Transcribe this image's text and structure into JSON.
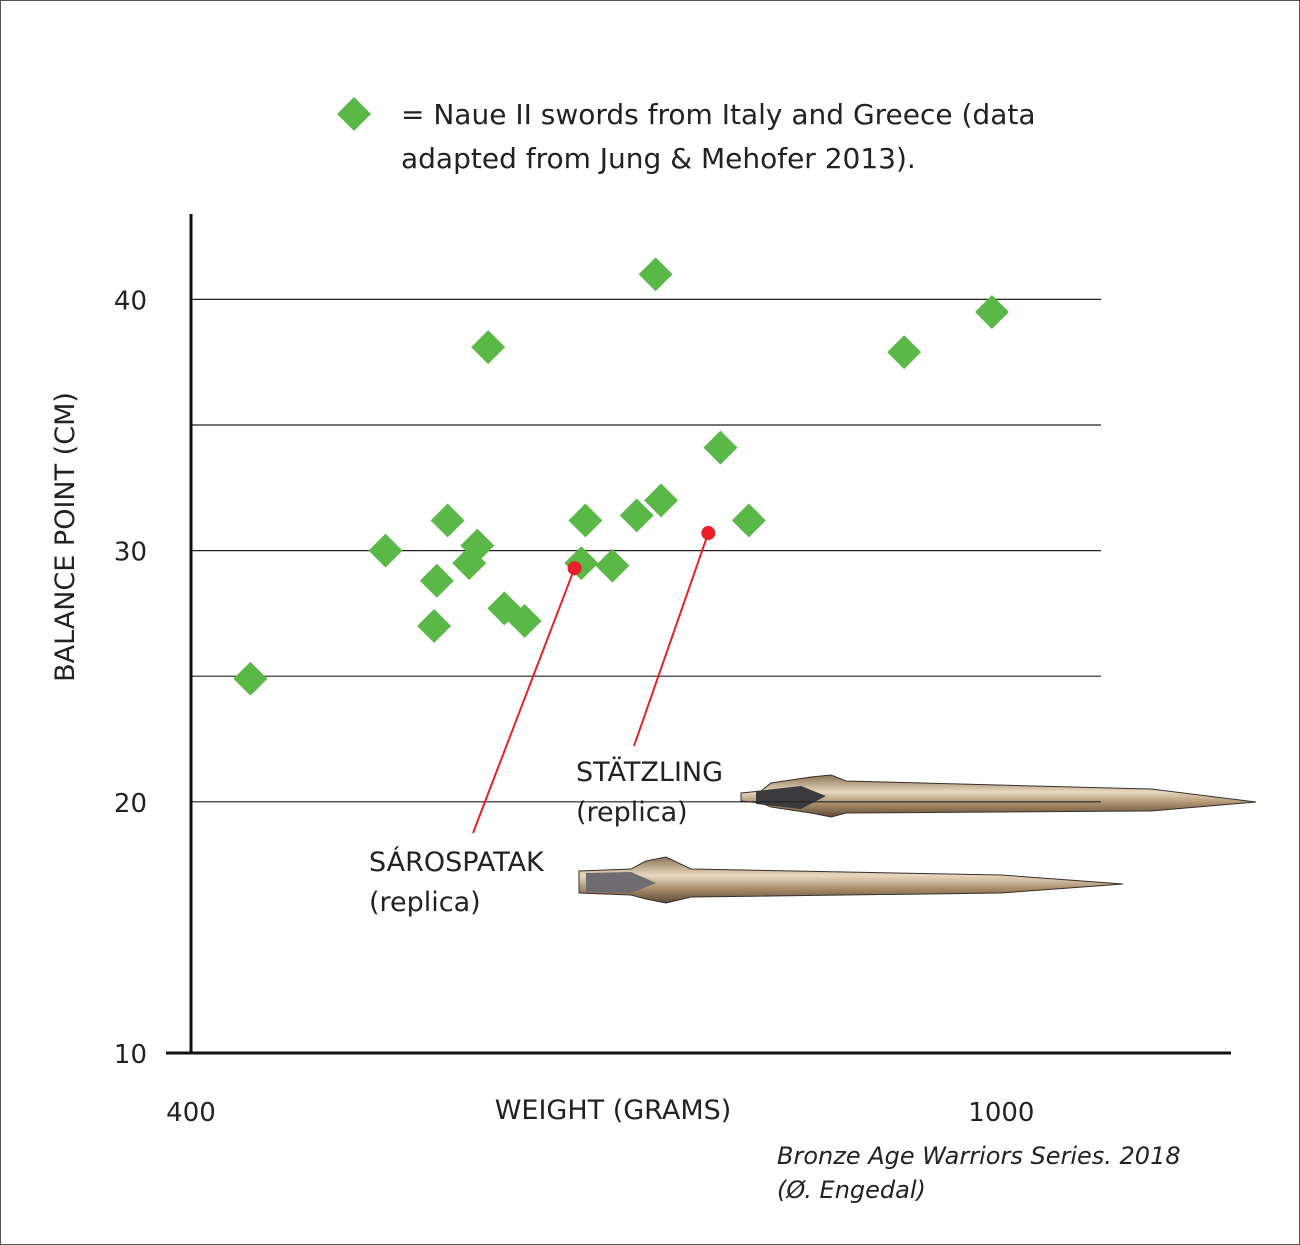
{
  "chart_data": {
    "type": "scatter",
    "xlabel": "WEIGHT (GRAMS)",
    "ylabel": "BALANCE POINT (CM)",
    "xlim": [
      400,
      1170
    ],
    "ylim": [
      10,
      43.4
    ],
    "xticks": [
      400,
      1000
    ],
    "yticks": [
      10,
      20,
      30,
      40
    ],
    "grid_lines": [
      20,
      25,
      30,
      35,
      40
    ],
    "series": [
      {
        "name": "= Naue II swords from Italy and Greece (data adapted from Jung & Mehofer 2013).",
        "color": "#5ab946",
        "x": [
          444,
          544,
          580,
          582,
          590,
          606,
          612,
          620,
          632,
          647,
          689,
          692,
          712,
          730,
          744,
          748,
          792,
          813,
          928,
          993
        ],
        "values": [
          24.9,
          30.0,
          27.0,
          28.8,
          31.2,
          29.5,
          30.2,
          38.1,
          27.7,
          27.2,
          29.5,
          31.2,
          29.4,
          31.4,
          41.0,
          32.0,
          34.1,
          31.2,
          37.9,
          39.5
        ]
      }
    ],
    "highlights": [
      {
        "label": "SÁROSPATAK",
        "sublabel": "(replica)",
        "x": 684,
        "y": 29.3,
        "color": "#e8202a"
      },
      {
        "label": "STÄTZLING",
        "sublabel": "(replica)",
        "x": 783,
        "y": 30.7,
        "color": "#e8202a"
      }
    ],
    "credit": [
      "Bronze Age Warriors Series. 2018",
      "(Ø. Engedal)"
    ]
  }
}
